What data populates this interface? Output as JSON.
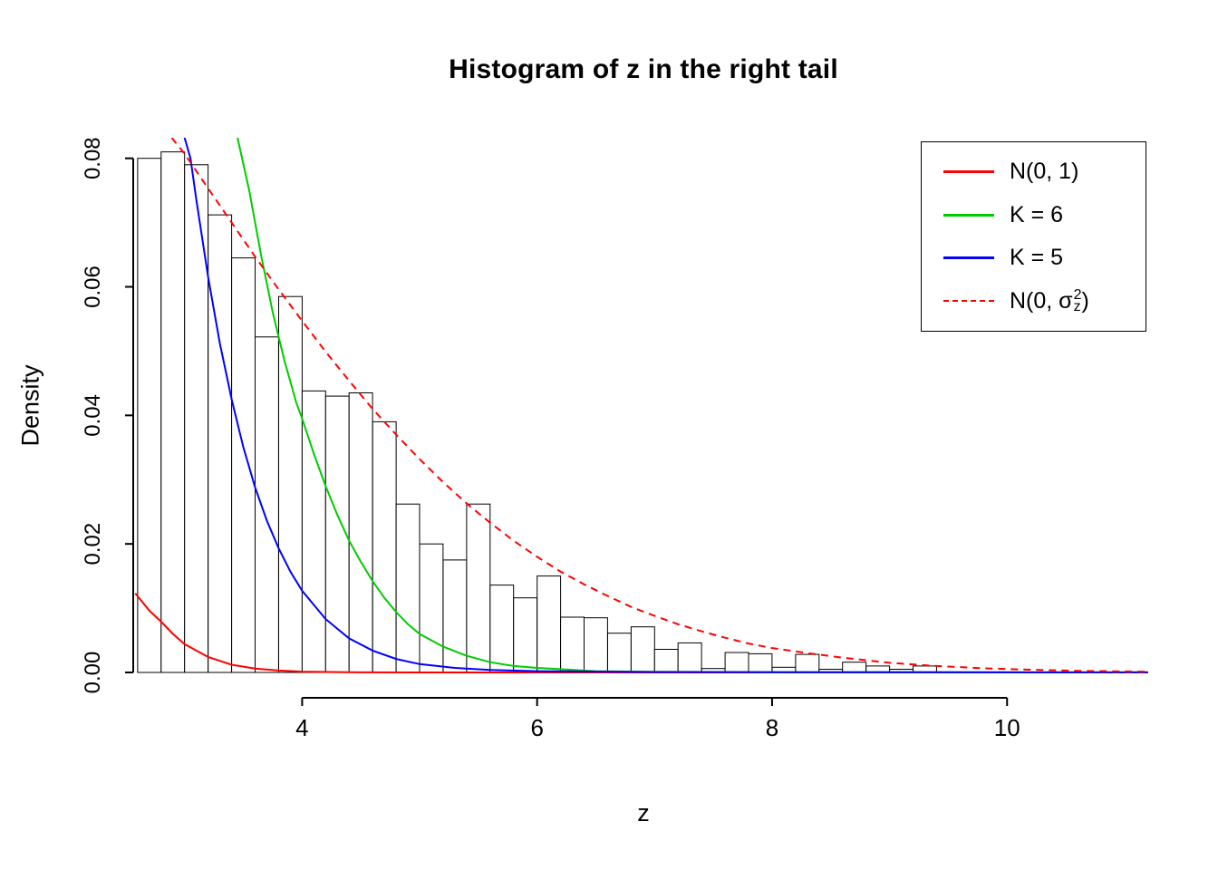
{
  "chart_data": {
    "type": "histogram",
    "title": "Histogram of z in the right tail",
    "xlabel": "z",
    "ylabel": "Density",
    "grid": false,
    "legend_position": "top-right",
    "x_axis": {
      "range": [
        2.57,
        11.24
      ],
      "ticks": [
        4,
        6,
        8,
        10
      ],
      "tick_labels": [
        "4",
        "6",
        "8",
        "10"
      ]
    },
    "y_axis": {
      "range": [
        0,
        0.0832
      ],
      "ticks": [
        0,
        0.02,
        0.04,
        0.06,
        0.08
      ],
      "tick_labels": [
        "0.00",
        "0.02",
        "0.04",
        "0.06",
        "0.08"
      ]
    },
    "bar_style": {
      "fill": "#FFFFFF",
      "stroke": "#000000"
    },
    "bins": {
      "start": 2.6,
      "width": 0.2,
      "values": [
        0.08,
        0.081,
        0.079,
        0.0712,
        0.0645,
        0.0522,
        0.0585,
        0.0438,
        0.043,
        0.0435,
        0.039,
        0.0262,
        0.02,
        0.0175,
        0.0262,
        0.0136,
        0.0116,
        0.015,
        0.0086,
        0.0085,
        0.0061,
        0.0071,
        0.0036,
        0.0046,
        0.0006,
        0.0031,
        0.0029,
        0.0008,
        0.0028,
        0.0005,
        0.0016,
        0.001,
        0.0005,
        0.001
      ]
    },
    "curves": [
      {
        "id": "n01",
        "name": "N(0, 1)",
        "color": "#FF0000",
        "dashed": false,
        "points": [
          [
            2.58,
            0.0123
          ],
          [
            2.7,
            0.0096
          ],
          [
            2.8,
            0.0079
          ],
          [
            2.9,
            0.006
          ],
          [
            3.0,
            0.0044
          ],
          [
            3.2,
            0.0024
          ],
          [
            3.4,
            0.0012
          ],
          [
            3.6,
            0.0006
          ],
          [
            3.8,
            0.0003
          ],
          [
            4.0,
            0.00013
          ],
          [
            4.5,
            2e-05
          ],
          [
            5.0,
            2e-06
          ],
          [
            11.2,
            0
          ]
        ]
      },
      {
        "id": "k6",
        "name": "K = 6",
        "color": "#00CC00",
        "dashed": false,
        "points": [
          [
            3.45,
            0.0832
          ],
          [
            3.55,
            0.075
          ],
          [
            3.65,
            0.065
          ],
          [
            3.75,
            0.056
          ],
          [
            3.85,
            0.0485
          ],
          [
            3.95,
            0.042
          ],
          [
            4.0,
            0.0395
          ],
          [
            4.1,
            0.034
          ],
          [
            4.2,
            0.029
          ],
          [
            4.3,
            0.0245
          ],
          [
            4.4,
            0.0205
          ],
          [
            4.5,
            0.0172
          ],
          [
            4.6,
            0.0142
          ],
          [
            4.7,
            0.0116
          ],
          [
            4.8,
            0.0094
          ],
          [
            4.9,
            0.0075
          ],
          [
            5.0,
            0.006
          ],
          [
            5.2,
            0.004
          ],
          [
            5.4,
            0.0026
          ],
          [
            5.6,
            0.0016
          ],
          [
            5.8,
            0.001
          ],
          [
            6.0,
            0.0007
          ],
          [
            6.5,
            0.0002
          ],
          [
            7.0,
            0.0001
          ],
          [
            8.0,
            4e-05
          ],
          [
            11.2,
            1e-05
          ]
        ]
      },
      {
        "id": "k5",
        "name": "K = 5",
        "color": "#0000FF",
        "dashed": false,
        "points": [
          [
            3.0,
            0.0832
          ],
          [
            3.05,
            0.08
          ],
          [
            3.1,
            0.0735
          ],
          [
            3.2,
            0.0615
          ],
          [
            3.3,
            0.0512
          ],
          [
            3.4,
            0.0425
          ],
          [
            3.5,
            0.035
          ],
          [
            3.6,
            0.0288
          ],
          [
            3.7,
            0.0236
          ],
          [
            3.8,
            0.0193
          ],
          [
            3.9,
            0.0157
          ],
          [
            4.0,
            0.0127
          ],
          [
            4.2,
            0.0083
          ],
          [
            4.4,
            0.0053
          ],
          [
            4.6,
            0.0034
          ],
          [
            4.8,
            0.0021
          ],
          [
            5.0,
            0.0013
          ],
          [
            5.3,
            0.0007
          ],
          [
            5.6,
            0.0004
          ],
          [
            6.0,
            0.0002
          ],
          [
            7.0,
            6e-05
          ],
          [
            11.2,
            2e-05
          ]
        ]
      },
      {
        "id": "n0sigma",
        "name": "N(0, sigma_z^2)",
        "color": "#FF0000",
        "dashed": true,
        "points": [
          [
            2.89,
            0.0832
          ],
          [
            3.0,
            0.0807
          ],
          [
            3.2,
            0.0753
          ],
          [
            3.4,
            0.07
          ],
          [
            3.6,
            0.0647
          ],
          [
            3.8,
            0.0596
          ],
          [
            4.0,
            0.0547
          ],
          [
            4.2,
            0.0499
          ],
          [
            4.4,
            0.0454
          ],
          [
            4.6,
            0.041
          ],
          [
            4.8,
            0.037
          ],
          [
            5.0,
            0.0332
          ],
          [
            5.2,
            0.0296
          ],
          [
            5.4,
            0.0263
          ],
          [
            5.6,
            0.0233
          ],
          [
            5.8,
            0.0205
          ],
          [
            6.0,
            0.018
          ],
          [
            6.2,
            0.0157
          ],
          [
            6.4,
            0.0137
          ],
          [
            6.6,
            0.0119
          ],
          [
            6.8,
            0.0102
          ],
          [
            7.0,
            0.0088
          ],
          [
            7.2,
            0.0075
          ],
          [
            7.4,
            0.0064
          ],
          [
            7.6,
            0.0054
          ],
          [
            7.8,
            0.0045
          ],
          [
            8.0,
            0.0038
          ],
          [
            8.3,
            0.003
          ],
          [
            8.6,
            0.0023
          ],
          [
            9.0,
            0.0015
          ],
          [
            9.4,
            0.001
          ],
          [
            9.8,
            0.00065
          ],
          [
            10.2,
            0.00042
          ],
          [
            10.6,
            0.00026
          ],
          [
            11.0,
            0.00016
          ],
          [
            11.2,
            0.00012
          ]
        ]
      }
    ],
    "legend": {
      "items": [
        {
          "label": "N(0, 1)",
          "color": "#FF0000",
          "dashed": false
        },
        {
          "label": "K = 6",
          "color": "#00CC00",
          "dashed": false
        },
        {
          "label": "K = 5",
          "color": "#0000FF",
          "dashed": false
        },
        {
          "label_pre": "N(0, σ",
          "label_sub": "z",
          "label_sup": "2",
          "label_post": ")",
          "color": "#FF0000",
          "dashed": true
        }
      ]
    }
  }
}
